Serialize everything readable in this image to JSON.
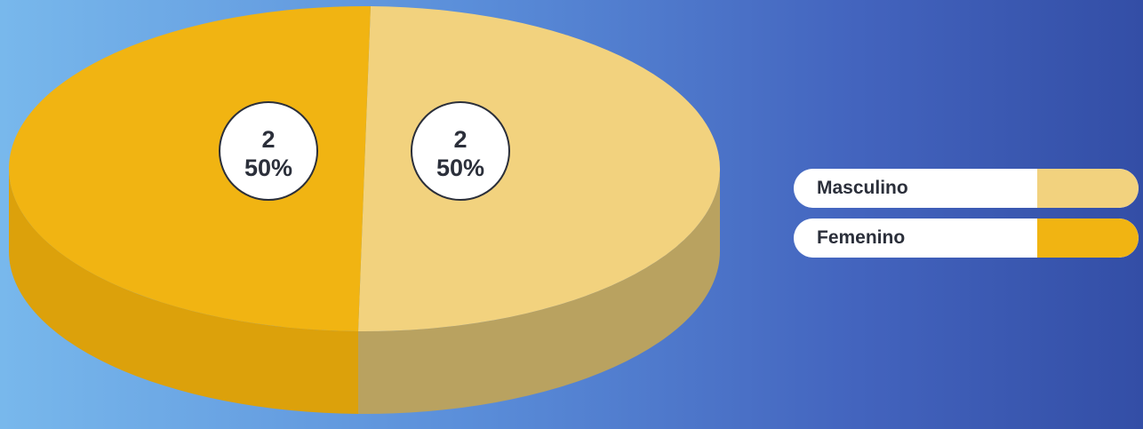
{
  "chart_data": {
    "type": "pie",
    "style": "3d",
    "slices": [
      {
        "label": "Masculino",
        "value": 2,
        "percent": "50%",
        "color": "#f2d27e",
        "side_color": "#b9a260"
      },
      {
        "label": "Femenino",
        "value": 2,
        "percent": "50%",
        "color": "#f1b412",
        "side_color": "#dca10b"
      }
    ],
    "data_labels": [
      {
        "value": "2",
        "percent": "50%"
      },
      {
        "value": "2",
        "percent": "50%"
      }
    ],
    "legend": {
      "placement": "right",
      "items": [
        {
          "label": "Masculino",
          "color": "#f2d27e"
        },
        {
          "label": "Femenino",
          "color": "#f1b412"
        }
      ]
    }
  }
}
